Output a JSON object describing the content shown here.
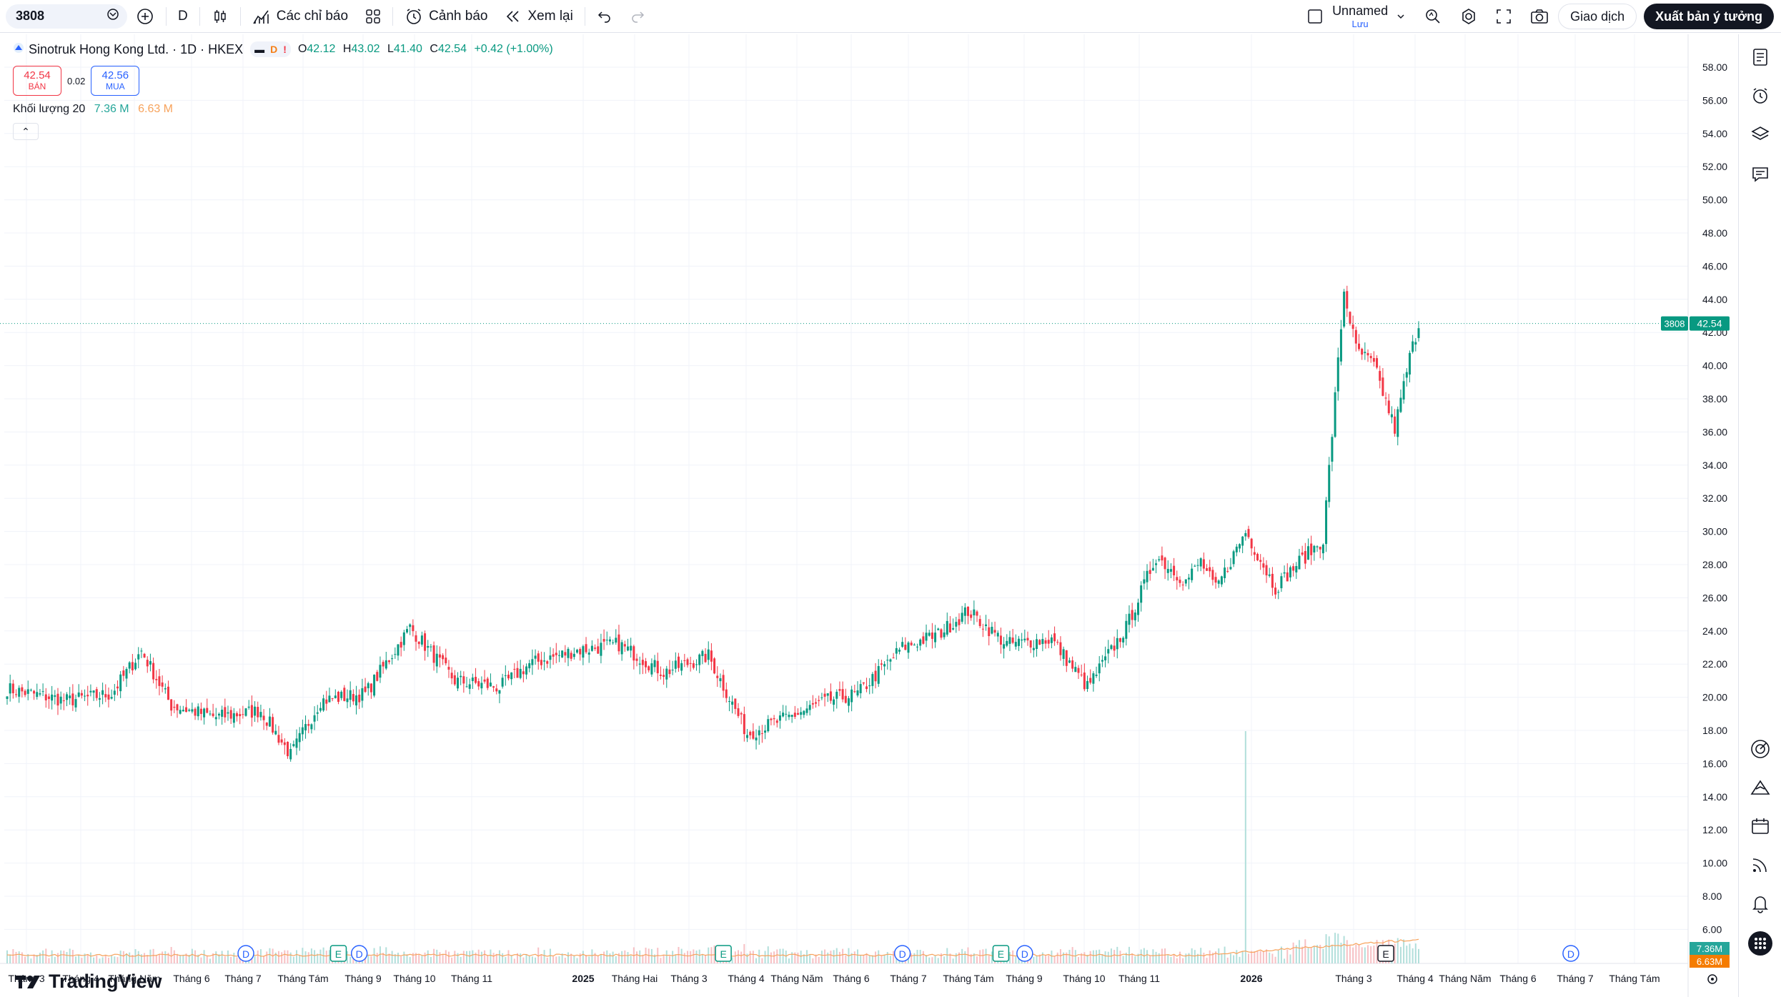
{
  "toolbar": {
    "symbol": "3808",
    "interval": "D",
    "indicators_label": "Các chỉ báo",
    "alert_label": "Cảnh báo",
    "replay_label": "Xem lại",
    "layout_name": "Unnamed",
    "save_label": "Lưu",
    "trade_label": "Giao dịch",
    "publish_label": "Xuất bản ý tưởng"
  },
  "legend": {
    "title": "Sinotruk Hong Kong Ltd. · 1D · HKEX",
    "badge_d": "D",
    "badge_warn": "!",
    "o_label": "O",
    "o_val": "42.12",
    "h_label": "H",
    "h_val": "43.02",
    "l_label": "L",
    "l_val": "41.40",
    "c_label": "C",
    "c_val": "42.54",
    "change": "+0.42 (+1.00%)",
    "sell_price": "42.54",
    "sell_label": "BÁN",
    "spread": "0.02",
    "buy_price": "42.56",
    "buy_label": "MUA",
    "volume_label": "Khối lượng 20",
    "volume_1": "7.36 M",
    "volume_2": "6.63 M"
  },
  "colors": {
    "up": "#089981",
    "down": "#f23645",
    "vol_up": "#b2dfdb",
    "vol_down": "#f7c0c4",
    "ma": "#f7a35c"
  },
  "price_label": {
    "symbol": "3808",
    "price": "42.54"
  },
  "volume_labels": {
    "v1": "7.36M",
    "v2": "6.63M"
  },
  "chart_data": {
    "type": "candlestick",
    "yticks": [
      "58.00",
      "56.00",
      "54.00",
      "52.00",
      "50.00",
      "48.00",
      "46.00",
      "44.00",
      "42.00",
      "40.00",
      "38.00",
      "36.00",
      "34.00",
      "32.00",
      "30.00",
      "28.00",
      "26.00",
      "24.00",
      "22.00",
      "20.00",
      "18.00",
      "16.00",
      "14.00",
      "12.00",
      "10.00",
      "8.00",
      "6.00"
    ],
    "ylim": [
      6,
      58
    ],
    "xticks": [
      {
        "label": "Tháng 3",
        "bold": false
      },
      {
        "label": "Tháng 4",
        "bold": false
      },
      {
        "label": "Tháng Năm",
        "bold": false
      },
      {
        "label": "Tháng 6",
        "bold": false
      },
      {
        "label": "Tháng 7",
        "bold": false
      },
      {
        "label": "Tháng Tám",
        "bold": false
      },
      {
        "label": "Tháng 9",
        "bold": false
      },
      {
        "label": "Tháng 10",
        "bold": false
      },
      {
        "label": "Tháng 11",
        "bold": false
      },
      {
        "label": "2025",
        "bold": true
      },
      {
        "label": "Tháng Hai",
        "bold": false
      },
      {
        "label": "Tháng 3",
        "bold": false
      },
      {
        "label": "Tháng 4",
        "bold": false
      },
      {
        "label": "Tháng Năm",
        "bold": false
      },
      {
        "label": "Tháng 6",
        "bold": false
      },
      {
        "label": "Tháng 7",
        "bold": false
      },
      {
        "label": "Tháng Tám",
        "bold": false
      },
      {
        "label": "Tháng 9",
        "bold": false
      },
      {
        "label": "Tháng 10",
        "bold": false
      },
      {
        "label": "Tháng 11",
        "bold": false
      },
      {
        "label": "2026",
        "bold": true
      },
      {
        "label": "Tháng 3",
        "bold": false
      },
      {
        "label": "Tháng 4",
        "bold": false
      },
      {
        "label": "Tháng Năm",
        "bold": false
      },
      {
        "label": "Tháng 6",
        "bold": false
      },
      {
        "label": "Tháng 7",
        "bold": false
      },
      {
        "label": "Tháng Tám",
        "bold": false
      }
    ],
    "anchors": [
      [
        0,
        20.5
      ],
      [
        20,
        19.8
      ],
      [
        35,
        20.2
      ],
      [
        45,
        22.8
      ],
      [
        55,
        19.5
      ],
      [
        70,
        18.8
      ],
      [
        85,
        19.2
      ],
      [
        95,
        16.5
      ],
      [
        105,
        19.8
      ],
      [
        120,
        20.2
      ],
      [
        135,
        24.2
      ],
      [
        150,
        21.0
      ],
      [
        165,
        20.6
      ],
      [
        175,
        22.0
      ],
      [
        190,
        22.8
      ],
      [
        205,
        23.2
      ],
      [
        220,
        21.5
      ],
      [
        235,
        22.5
      ],
      [
        248,
        17.8
      ],
      [
        262,
        18.8
      ],
      [
        275,
        19.8
      ],
      [
        285,
        20.2
      ],
      [
        300,
        23.0
      ],
      [
        312,
        23.8
      ],
      [
        322,
        25.2
      ],
      [
        335,
        23.2
      ],
      [
        350,
        23.5
      ],
      [
        362,
        20.6
      ],
      [
        375,
        24.2
      ],
      [
        385,
        28.5
      ],
      [
        395,
        27.0
      ],
      [
        400,
        28.2
      ],
      [
        405,
        26.5
      ],
      [
        415,
        30.0
      ],
      [
        425,
        26.6
      ],
      [
        432,
        28.0
      ],
      [
        441,
        29.5
      ],
      [
        448,
        44.5
      ],
      [
        452,
        41.0
      ],
      [
        458,
        40.0
      ],
      [
        465,
        36.2
      ],
      [
        470,
        40.5
      ],
      [
        473,
        42.5
      ]
    ],
    "vol_spike_index": 415,
    "markers": [
      {
        "type": "D",
        "idx": 80
      },
      {
        "type": "E",
        "idx": 111
      },
      {
        "type": "D",
        "idx": 118
      },
      {
        "type": "E",
        "idx": 240
      },
      {
        "type": "D",
        "idx": 300
      },
      {
        "type": "E",
        "idx": 333
      },
      {
        "type": "D",
        "idx": 341
      },
      {
        "type": "E",
        "idx": 462
      },
      {
        "type": "D",
        "idx": 524
      }
    ]
  }
}
